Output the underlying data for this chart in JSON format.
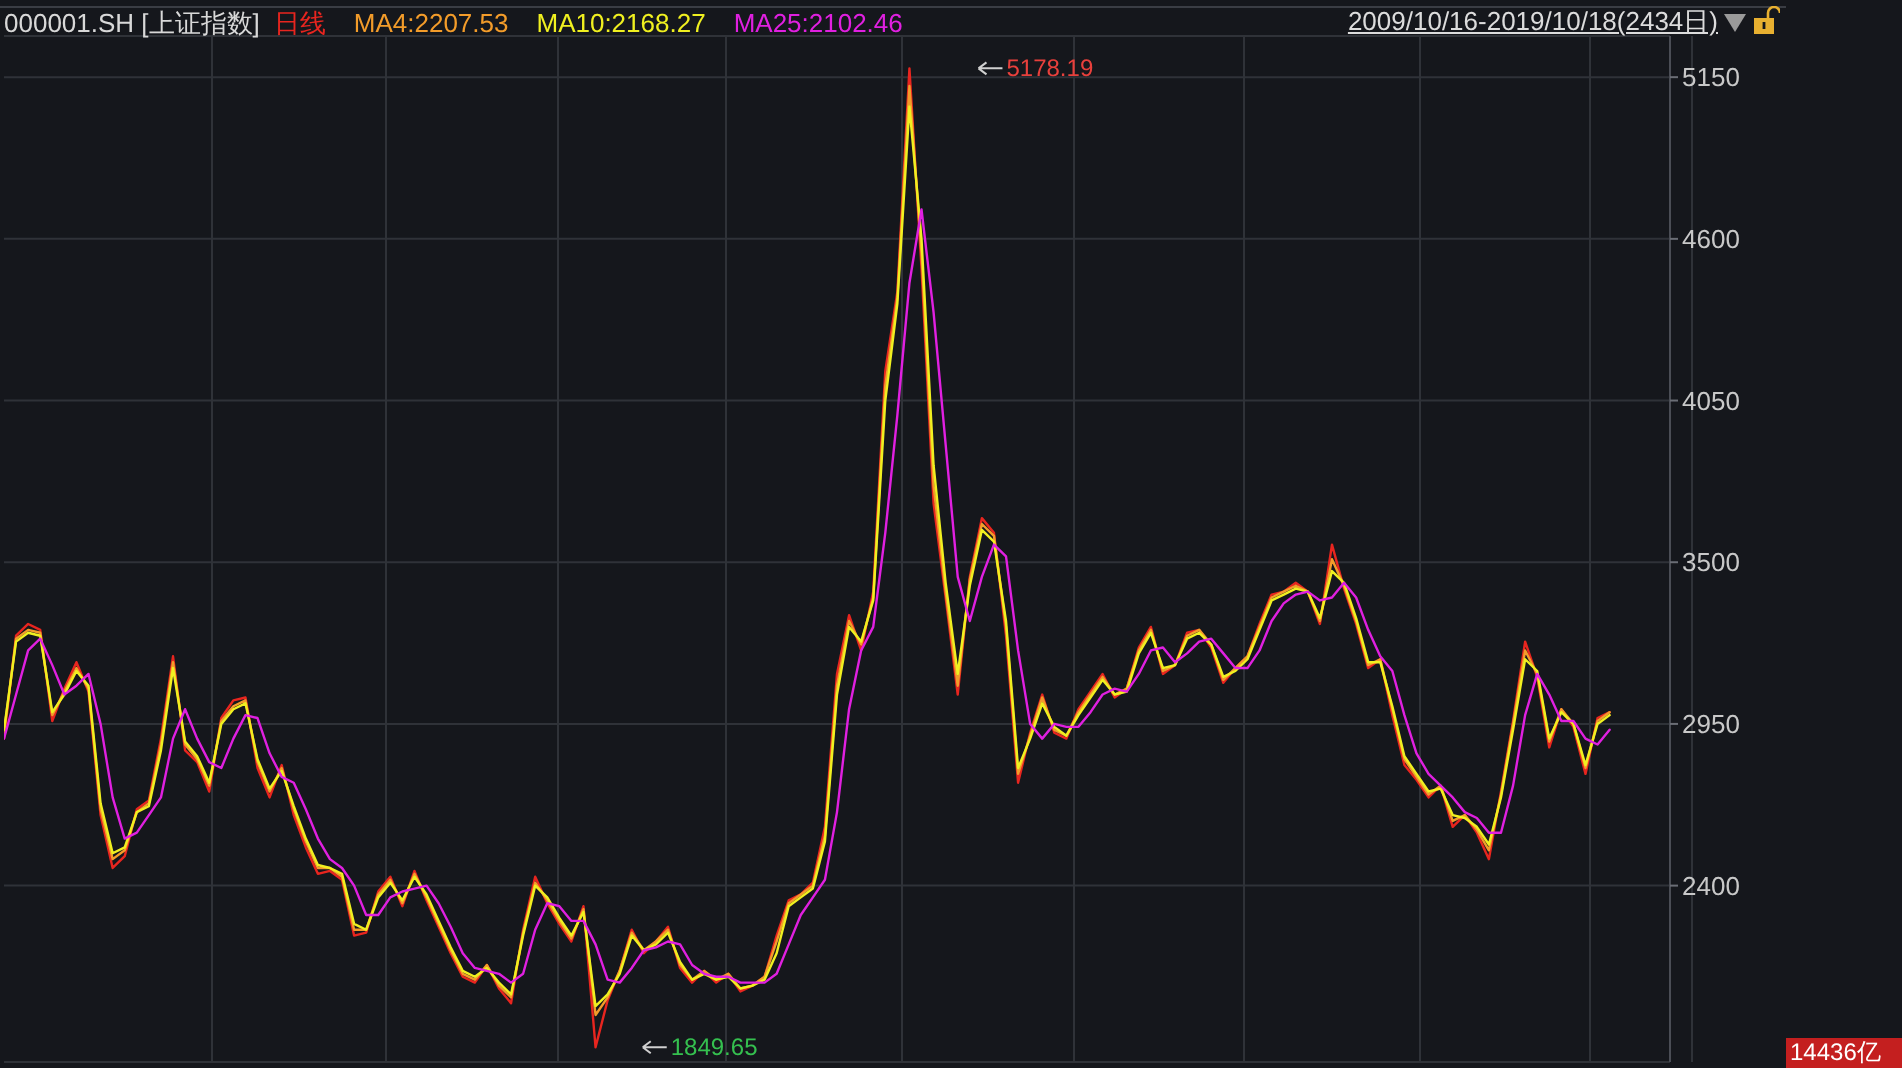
{
  "chart_data": {
    "type": "line",
    "title": "000001.SH [上证指数]",
    "categories": [
      null,
      null,
      null,
      null,
      null,
      null,
      null,
      null,
      null,
      null,
      null,
      null,
      null,
      null,
      null,
      null,
      null,
      null,
      null,
      null,
      null,
      null,
      null,
      null,
      null,
      null,
      null,
      null,
      null,
      null,
      null,
      null,
      null,
      null,
      null,
      null,
      null,
      null,
      null,
      null,
      null,
      null,
      null,
      null,
      null,
      null,
      null,
      null,
      null,
      null,
      null,
      null,
      null,
      null,
      null,
      null,
      null,
      null,
      null,
      null,
      null,
      null,
      null,
      null,
      null,
      null,
      null,
      null,
      null,
      null,
      null,
      null,
      null,
      null,
      null,
      null,
      null,
      null,
      null,
      null,
      null,
      null,
      null,
      null,
      null,
      null,
      null,
      null,
      null,
      null,
      null,
      null,
      null,
      null,
      null,
      null,
      null,
      null,
      null,
      null,
      null,
      null,
      null,
      null,
      null,
      null,
      null,
      null,
      null,
      null,
      null,
      null,
      null,
      null,
      null,
      null,
      null,
      null,
      null,
      null,
      null,
      null,
      null,
      null,
      null,
      null,
      null,
      null,
      null,
      null,
      null,
      null,
      null,
      null,
      null,
      null,
      null,
      null,
      null
    ],
    "series": [
      {
        "name": "日线",
        "color": "#e8251f",
        "values": [
          2900,
          3250,
          3290,
          3270,
          2960,
          3070,
          3160,
          3060,
          2640,
          2460,
          2500,
          2660,
          2690,
          2900,
          3180,
          2860,
          2820,
          2720,
          2970,
          3030,
          3040,
          2800,
          2700,
          2810,
          2640,
          2530,
          2440,
          2450,
          2420,
          2230,
          2240,
          2380,
          2430,
          2330,
          2450,
          2350,
          2260,
          2170,
          2090,
          2070,
          2130,
          2050,
          2000,
          2250,
          2430,
          2340,
          2270,
          2210,
          2330,
          1850,
          2010,
          2110,
          2250,
          2170,
          2210,
          2260,
          2120,
          2070,
          2110,
          2070,
          2100,
          2040,
          2060,
          2090,
          2230,
          2350,
          2370,
          2410,
          2600,
          3120,
          3320,
          3200,
          3400,
          4150,
          4420,
          5180,
          4500,
          3700,
          3380,
          3050,
          3450,
          3650,
          3600,
          3250,
          2750,
          2920,
          3050,
          2920,
          2900,
          3000,
          3060,
          3120,
          3040,
          3070,
          3210,
          3280,
          3120,
          3150,
          3260,
          3270,
          3210,
          3090,
          3140,
          3180,
          3290,
          3390,
          3400,
          3430,
          3400,
          3290,
          3560,
          3410,
          3290,
          3140,
          3170,
          2980,
          2810,
          2760,
          2700,
          2740,
          2600,
          2640,
          2580,
          2490,
          2720,
          2960,
          3230,
          3110,
          2870,
          3000,
          2940,
          2780,
          2970,
          2990,
          null,
          null,
          null,
          null,
          null
        ]
      },
      {
        "name": "MA4:2207.53",
        "color": "#f39c2a",
        "values": [
          2920,
          3240,
          3270,
          3260,
          2980,
          3060,
          3140,
          3070,
          2660,
          2490,
          2520,
          2650,
          2680,
          2880,
          3160,
          2880,
          2830,
          2740,
          2960,
          3010,
          3030,
          2820,
          2720,
          2800,
          2660,
          2550,
          2460,
          2460,
          2430,
          2250,
          2250,
          2370,
          2420,
          2340,
          2440,
          2360,
          2270,
          2180,
          2100,
          2080,
          2130,
          2060,
          2020,
          2240,
          2410,
          2350,
          2280,
          2220,
          2320,
          1960,
          2020,
          2110,
          2240,
          2180,
          2210,
          2250,
          2130,
          2080,
          2110,
          2080,
          2100,
          2050,
          2060,
          2090,
          2210,
          2340,
          2370,
          2400,
          2570,
          3080,
          3300,
          3220,
          3380,
          4100,
          4400,
          5120,
          4550,
          3760,
          3400,
          3080,
          3440,
          3630,
          3590,
          3280,
          2780,
          2910,
          3040,
          2930,
          2910,
          2990,
          3050,
          3110,
          3050,
          3070,
          3200,
          3270,
          3130,
          3150,
          3250,
          3270,
          3220,
          3100,
          3140,
          3180,
          3280,
          3380,
          3400,
          3420,
          3400,
          3300,
          3510,
          3420,
          3300,
          3150,
          3170,
          3000,
          2830,
          2770,
          2710,
          2740,
          2620,
          2640,
          2590,
          2520,
          2710,
          2950,
          3200,
          3120,
          2890,
          3000,
          2950,
          2800,
          2960,
          2990,
          null,
          null,
          null,
          null,
          null
        ]
      },
      {
        "name": "MA10:2168.27",
        "color": "#f0f020",
        "values": [
          2930,
          3230,
          3260,
          3250,
          2990,
          3050,
          3130,
          3080,
          2680,
          2510,
          2530,
          2650,
          2670,
          2860,
          3140,
          2890,
          2840,
          2750,
          2950,
          3000,
          3020,
          2830,
          2730,
          2790,
          2670,
          2560,
          2470,
          2460,
          2440,
          2270,
          2250,
          2360,
          2410,
          2350,
          2430,
          2370,
          2280,
          2190,
          2110,
          2090,
          2120,
          2070,
          2030,
          2230,
          2400,
          2360,
          2290,
          2230,
          2310,
          1990,
          2030,
          2100,
          2230,
          2180,
          2200,
          2240,
          2140,
          2080,
          2100,
          2080,
          2090,
          2050,
          2060,
          2080,
          2170,
          2330,
          2360,
          2390,
          2550,
          3050,
          3280,
          3230,
          3370,
          4050,
          4380,
          5050,
          4600,
          3830,
          3430,
          3120,
          3420,
          3610,
          3570,
          3300,
          2800,
          2900,
          3020,
          2940,
          2910,
          2980,
          3040,
          3100,
          3050,
          3060,
          3190,
          3260,
          3140,
          3150,
          3240,
          3260,
          3220,
          3110,
          3130,
          3170,
          3270,
          3370,
          3390,
          3410,
          3400,
          3310,
          3470,
          3430,
          3310,
          3160,
          3160,
          3010,
          2840,
          2780,
          2720,
          2730,
          2640,
          2630,
          2600,
          2540,
          2700,
          2930,
          3170,
          3130,
          2900,
          2990,
          2950,
          2810,
          2950,
          2980,
          null,
          null,
          null,
          null,
          null
        ]
      },
      {
        "name": "MA25:2102.46",
        "color": "#e020e0",
        "values": [
          2900,
          3050,
          3200,
          3240,
          3150,
          3050,
          3080,
          3120,
          2950,
          2700,
          2560,
          2580,
          2640,
          2700,
          2900,
          3000,
          2900,
          2820,
          2800,
          2900,
          2980,
          2970,
          2850,
          2770,
          2750,
          2660,
          2560,
          2490,
          2460,
          2400,
          2300,
          2300,
          2360,
          2380,
          2390,
          2400,
          2340,
          2260,
          2170,
          2120,
          2110,
          2100,
          2070,
          2100,
          2250,
          2340,
          2330,
          2280,
          2280,
          2200,
          2080,
          2070,
          2120,
          2180,
          2190,
          2210,
          2200,
          2130,
          2100,
          2090,
          2090,
          2070,
          2070,
          2070,
          2100,
          2200,
          2300,
          2360,
          2420,
          2650,
          3000,
          3200,
          3280,
          3600,
          4000,
          4450,
          4700,
          4350,
          3900,
          3450,
          3300,
          3450,
          3560,
          3520,
          3200,
          2950,
          2900,
          2950,
          2940,
          2940,
          2990,
          3050,
          3070,
          3060,
          3120,
          3200,
          3210,
          3160,
          3190,
          3230,
          3240,
          3190,
          3140,
          3140,
          3200,
          3300,
          3360,
          3390,
          3400,
          3370,
          3380,
          3430,
          3380,
          3270,
          3180,
          3130,
          2980,
          2850,
          2780,
          2740,
          2700,
          2650,
          2630,
          2580,
          2580,
          2740,
          2980,
          3120,
          3050,
          2960,
          2960,
          2900,
          2880,
          2930,
          null,
          null,
          null,
          null,
          null
        ]
      }
    ],
    "ylim": [
      1800,
      5290
    ],
    "yticks": [
      2400,
      2950,
      3500,
      4050,
      4600,
      5150
    ],
    "grid": true,
    "legend": "top left",
    "tick_labels": "y",
    "annotations": [
      "5178.19",
      "1849.65",
      "2009/10/16-2019/10/18(2434日)",
      "14436亿"
    ]
  }
}
